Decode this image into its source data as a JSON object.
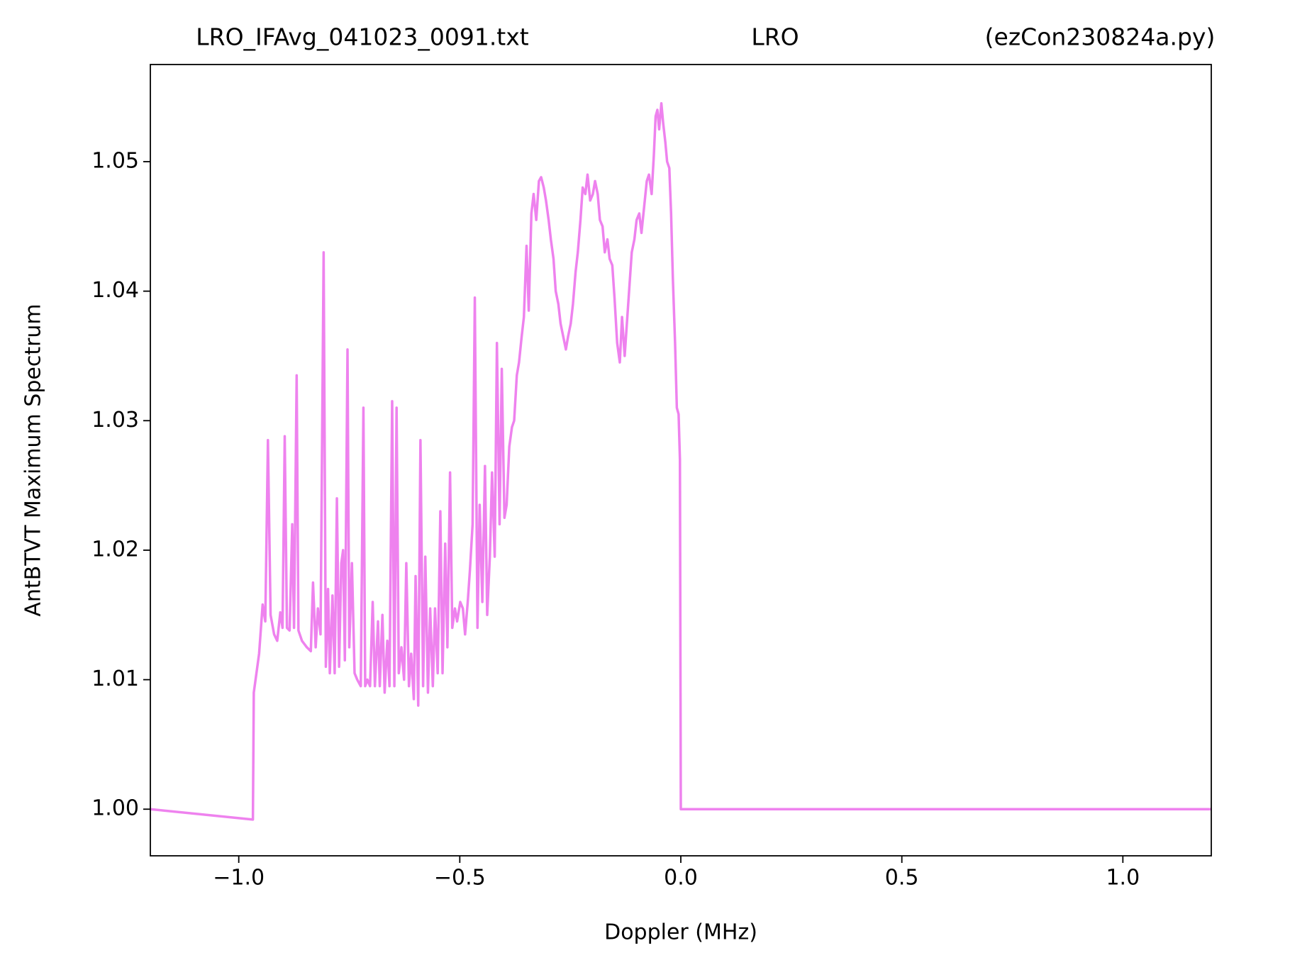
{
  "chart_data": {
    "type": "line",
    "title": [
      "LRO_IFAvg_041023_0091.txt",
      "LRO",
      "(ezCon230824a.py)"
    ],
    "xlabel": "Doppler (MHz)",
    "ylabel": "AntBTVT Maximum Spectrum",
    "color": "#ee82ee",
    "xlim": [
      -1.2,
      1.2
    ],
    "ylim": [
      0.9964,
      1.0575
    ],
    "xticks": [
      {
        "value": -1.0,
        "label": "−1.0"
      },
      {
        "value": -0.5,
        "label": "−0.5"
      },
      {
        "value": 0.0,
        "label": "0.0"
      },
      0.5,
      {
        "value": 1.0,
        "label": "1.0"
      }
    ],
    "yticks": [
      {
        "value": 1.0,
        "label": "1.00"
      },
      {
        "value": 1.01,
        "label": "1.01"
      },
      {
        "value": 1.02,
        "label": "1.02"
      },
      {
        "value": 1.03,
        "label": "1.03"
      },
      {
        "value": 1.04,
        "label": "1.04"
      },
      {
        "value": 1.05,
        "label": "1.05"
      }
    ],
    "x": [
      -1.2,
      -0.968,
      -0.966,
      -0.954,
      -0.946,
      -0.94,
      -0.934,
      -0.928,
      -0.92,
      -0.913,
      -0.906,
      -0.901,
      -0.896,
      -0.891,
      -0.885,
      -0.879,
      -0.875,
      -0.869,
      -0.865,
      -0.857,
      -0.846,
      -0.837,
      -0.832,
      -0.826,
      -0.821,
      -0.815,
      -0.808,
      -0.803,
      -0.798,
      -0.794,
      -0.788,
      -0.783,
      -0.778,
      -0.773,
      -0.768,
      -0.764,
      -0.76,
      -0.754,
      -0.75,
      -0.744,
      -0.738,
      -0.732,
      -0.724,
      -0.718,
      -0.714,
      -0.709,
      -0.703,
      -0.697,
      -0.692,
      -0.685,
      -0.681,
      -0.675,
      -0.67,
      -0.664,
      -0.659,
      -0.653,
      -0.648,
      -0.643,
      -0.638,
      -0.632,
      -0.626,
      -0.621,
      -0.615,
      -0.61,
      -0.604,
      -0.6,
      -0.594,
      -0.589,
      -0.583,
      -0.578,
      -0.572,
      -0.567,
      -0.561,
      -0.556,
      -0.55,
      -0.544,
      -0.539,
      -0.533,
      -0.528,
      -0.522,
      -0.517,
      -0.511,
      -0.506,
      -0.499,
      -0.493,
      -0.488,
      -0.482,
      -0.477,
      -0.471,
      -0.466,
      -0.46,
      -0.455,
      -0.449,
      -0.443,
      -0.438,
      -0.432,
      -0.427,
      -0.421,
      -0.416,
      -0.41,
      -0.405,
      -0.399,
      -0.394,
      -0.388,
      -0.382,
      -0.377,
      -0.371,
      -0.366,
      -0.36,
      -0.355,
      -0.349,
      -0.344,
      -0.338,
      -0.333,
      -0.327,
      -0.321,
      -0.316,
      -0.31,
      -0.305,
      -0.299,
      -0.294,
      -0.288,
      -0.283,
      -0.277,
      -0.272,
      -0.266,
      -0.26,
      -0.255,
      -0.249,
      -0.244,
      -0.238,
      -0.233,
      -0.227,
      -0.222,
      -0.216,
      -0.211,
      -0.205,
      -0.199,
      -0.194,
      -0.188,
      -0.183,
      -0.177,
      -0.172,
      -0.166,
      -0.161,
      -0.155,
      -0.15,
      -0.144,
      -0.138,
      -0.133,
      -0.127,
      -0.122,
      -0.116,
      -0.111,
      -0.105,
      -0.1,
      -0.094,
      -0.089,
      -0.083,
      -0.077,
      -0.072,
      -0.066,
      -0.061,
      -0.057,
      -0.053,
      -0.049,
      -0.044,
      -0.04,
      -0.035,
      -0.031,
      -0.026,
      -0.022,
      -0.018,
      -0.013,
      -0.009,
      -0.005,
      -0.002,
      0.0,
      1.2
    ],
    "values": [
      1.0,
      0.9992,
      1.009,
      1.012,
      1.0158,
      1.0145,
      1.0285,
      1.015,
      1.0135,
      1.013,
      1.0152,
      1.014,
      1.0288,
      1.014,
      1.0138,
      1.022,
      1.014,
      1.0335,
      1.0138,
      1.013,
      1.0125,
      1.0122,
      1.0175,
      1.0125,
      1.0155,
      1.0135,
      1.043,
      1.011,
      1.017,
      1.0105,
      1.0165,
      1.0105,
      1.024,
      1.011,
      1.019,
      1.02,
      1.0115,
      1.0355,
      1.0125,
      1.019,
      1.0105,
      1.01,
      1.0095,
      1.031,
      1.0095,
      1.01,
      1.0095,
      1.016,
      1.0095,
      1.0145,
      1.0095,
      1.015,
      1.009,
      1.013,
      1.0095,
      1.0315,
      1.0095,
      1.031,
      1.0105,
      1.0125,
      1.01,
      1.019,
      1.0095,
      1.012,
      1.0085,
      1.018,
      1.008,
      1.0285,
      1.0095,
      1.0195,
      1.009,
      1.0155,
      1.0095,
      1.0155,
      1.0105,
      1.023,
      1.0105,
      1.0205,
      1.0125,
      1.026,
      1.014,
      1.0155,
      1.0145,
      1.016,
      1.0155,
      1.0135,
      1.016,
      1.0185,
      1.022,
      1.0395,
      1.014,
      1.0235,
      1.016,
      1.0265,
      1.015,
      1.0195,
      1.026,
      1.0195,
      1.036,
      1.022,
      1.034,
      1.0225,
      1.0235,
      1.028,
      1.0295,
      1.03,
      1.0335,
      1.0345,
      1.0365,
      1.038,
      1.0435,
      1.0385,
      1.046,
      1.0475,
      1.0455,
      1.0485,
      1.0488,
      1.048,
      1.047,
      1.0455,
      1.044,
      1.0425,
      1.04,
      1.039,
      1.0375,
      1.0365,
      1.0355,
      1.0365,
      1.0375,
      1.039,
      1.0415,
      1.043,
      1.0455,
      1.048,
      1.0475,
      1.049,
      1.047,
      1.0475,
      1.0485,
      1.0475,
      1.0455,
      1.045,
      1.043,
      1.044,
      1.0425,
      1.042,
      1.0395,
      1.036,
      1.0345,
      1.038,
      1.035,
      1.0375,
      1.0405,
      1.043,
      1.044,
      1.0455,
      1.046,
      1.0445,
      1.0465,
      1.0485,
      1.049,
      1.0475,
      1.0505,
      1.0535,
      1.054,
      1.0525,
      1.0545,
      1.053,
      1.0515,
      1.05,
      1.0495,
      1.046,
      1.041,
      1.036,
      1.031,
      1.0305,
      1.027,
      1.0,
      1.0
    ]
  }
}
